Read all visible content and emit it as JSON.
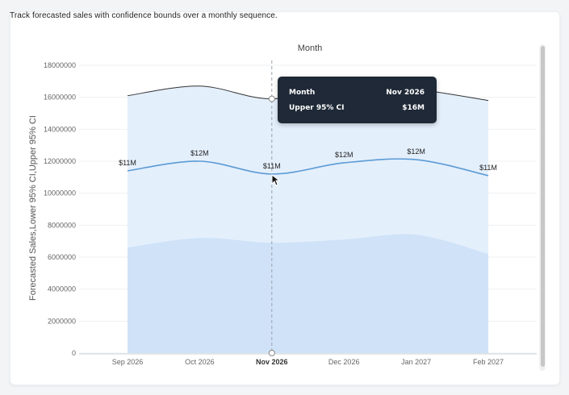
{
  "description": "Track forecasted sales with confidence bounds over a monthly sequence.",
  "chart_data": {
    "type": "area",
    "title": "Month",
    "xlabel": "",
    "ylabel": "Forecasted Sales,Lower 95% CI,Upper 95% CI",
    "categories": [
      "Sep 2026",
      "Oct 2026",
      "Nov 2026",
      "Dec 2026",
      "Jan 2027",
      "Feb 2027"
    ],
    "highlight_category": "Nov 2026",
    "ylim": [
      0,
      18000000
    ],
    "yticks": [
      "0",
      "2000000",
      "4000000",
      "6000000",
      "8000000",
      "10000000",
      "12000000",
      "14000000",
      "16000000",
      "18000000"
    ],
    "series": [
      {
        "name": "Forecasted Sales",
        "values": [
          11400000,
          12000000,
          11200000,
          11900000,
          12100000,
          11100000
        ],
        "color": "#5b9bd5"
      },
      {
        "name": "Lower 95% CI",
        "values": [
          6600000,
          7200000,
          6900000,
          7100000,
          7400000,
          6200000
        ],
        "color": "#cfe2f8"
      },
      {
        "name": "Upper 95% CI",
        "values": [
          16100000,
          16700000,
          15900000,
          16800000,
          16500000,
          15800000
        ],
        "color": "#e4effc"
      }
    ],
    "data_labels": [
      "$11M",
      "$12M",
      "$11M",
      "$12M",
      "$12M",
      "$11M"
    ],
    "grid": true,
    "legend": "none"
  },
  "tooltip": {
    "row1_label": "Month",
    "row1_value": "Nov 2026",
    "row2_label": "Upper 95% CI",
    "row2_value": "$16M"
  },
  "colors": {
    "upper_fill": "#e4effc",
    "lower_fill": "#cfe2f8",
    "forecast_line": "#5b9bd5",
    "upper_line": "#333333",
    "tooltip_bg": "#1f2937"
  }
}
